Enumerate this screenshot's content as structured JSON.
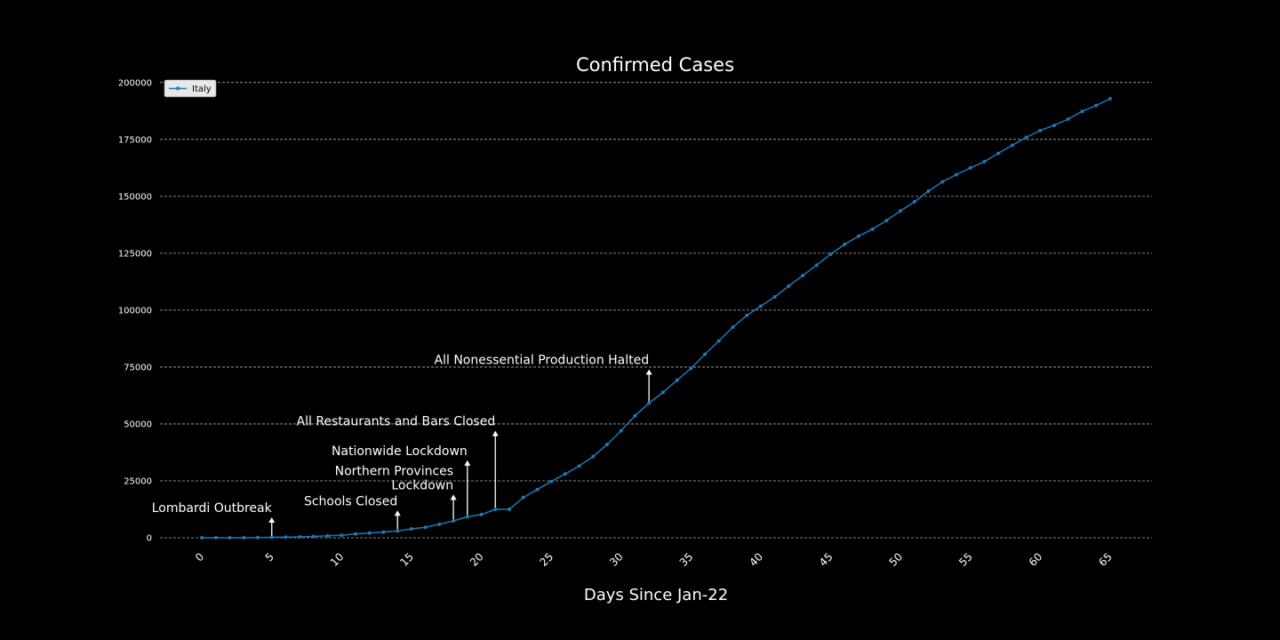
{
  "chart_data": {
    "type": "line",
    "title": "Confirmed Cases",
    "xlabel": "Days Since Jan-22",
    "ylabel": "",
    "xlim": [
      -3,
      68
    ],
    "ylim": [
      -5000,
      205000
    ],
    "xticks": [
      0,
      5,
      10,
      15,
      20,
      25,
      30,
      35,
      40,
      45,
      50,
      55,
      60,
      65
    ],
    "yticks": [
      0,
      25000,
      50000,
      75000,
      100000,
      125000,
      150000,
      175000,
      200000
    ],
    "grid": "horizontal",
    "legend_position": "top-left",
    "series": [
      {
        "name": "Italy",
        "color": "#1f77b4",
        "x": [
          0,
          1,
          2,
          3,
          4,
          5,
          6,
          7,
          8,
          9,
          10,
          11,
          12,
          13,
          14,
          15,
          16,
          17,
          18,
          19,
          20,
          21,
          22,
          23,
          24,
          25,
          26,
          27,
          28,
          29,
          30,
          31,
          32,
          33,
          34,
          35,
          36,
          37,
          38,
          39,
          40,
          41,
          42,
          43,
          44,
          45,
          46,
          47,
          48,
          49,
          50,
          51,
          52,
          53,
          54,
          55,
          56,
          57,
          58,
          59,
          60,
          61,
          62,
          63,
          64,
          65
        ],
        "y": [
          0,
          0,
          0,
          0,
          100,
          200,
          300,
          400,
          600,
          900,
          1100,
          1700,
          2100,
          2500,
          3000,
          3900,
          4600,
          5900,
          7400,
          9200,
          10200,
          12500,
          12500,
          17700,
          21200,
          24700,
          28000,
          31500,
          35700,
          41000,
          47000,
          53600,
          59100,
          63900,
          69200,
          74400,
          80600,
          86500,
          92500,
          97700,
          101700,
          105800,
          110600,
          115200,
          119800,
          124600,
          128900,
          132500,
          135600,
          139400,
          143600,
          147600,
          152300,
          156400,
          159500,
          162500,
          165200,
          168900,
          172400,
          175900,
          178900,
          181200,
          183900,
          187300,
          189900,
          192900
        ]
      }
    ],
    "annotations": [
      {
        "text": "Lombardi Outbreak",
        "x": 5,
        "y_base": 0,
        "y_tip": 9000
      },
      {
        "text": "Schools Closed",
        "x": 14,
        "y_base": 3000,
        "y_tip": 12000
      },
      {
        "text": "Northern Provinces\nLockdown",
        "x": 18,
        "y_base": 7400,
        "y_tip": 19000
      },
      {
        "text": "Nationwide Lockdown",
        "x": 19,
        "y_base": 9200,
        "y_tip": 34000
      },
      {
        "text": "All Restaurants and Bars Closed",
        "x": 21,
        "y_base": 12500,
        "y_tip": 47000
      },
      {
        "text": "All Nonessential Production Halted",
        "x": 32,
        "y_base": 59100,
        "y_tip": 74000
      }
    ]
  }
}
